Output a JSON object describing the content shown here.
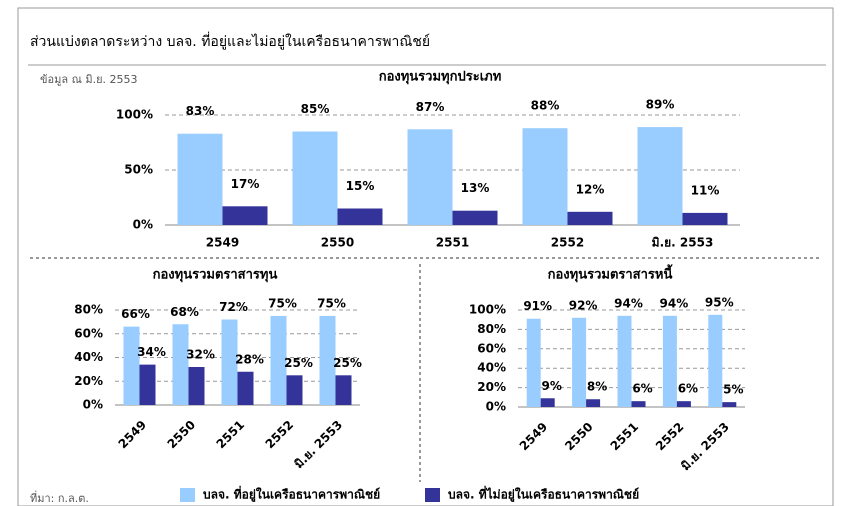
{
  "title": "ส่วนแบ่งตลาดระหว่าง บลจ. ที่อยู่และไม่อยู่ในเครือธนาคารพาณิชย์",
  "note": "ข้อมูล ณ มิ.ย. 2553",
  "source": "ที่มา: ก.ล.ต.",
  "legend": [
    {
      "name": "บลจ. ที่อยู่ในเครือธนาคารพาณิชย์",
      "color": "#99ccff"
    },
    {
      "name": "บลจ. ที่ไม่อยู่ในเครือธนาคารพาณิชย์",
      "color": "#333399"
    }
  ],
  "chart_data": [
    {
      "type": "bar",
      "title": "กองทุนรวมทุกประเภท",
      "categories": [
        "2549",
        "2550",
        "2551",
        "2552",
        "มิ.ย. 2553"
      ],
      "series": [
        {
          "color": "#99ccff",
          "values": [
            83,
            85,
            87,
            88,
            89
          ],
          "value_labels": [
            "83%",
            "85%",
            "87%",
            "88%",
            "89%"
          ]
        },
        {
          "color": "#333399",
          "values": [
            17,
            15,
            13,
            12,
            11
          ],
          "value_labels": [
            "17%",
            "15%",
            "13%",
            "12%",
            "11%"
          ]
        }
      ],
      "ylim": [
        0,
        100
      ],
      "yticks": [
        {
          "value": 0,
          "label": "0%"
        },
        {
          "value": 50,
          "label": "50%"
        },
        {
          "value": 100,
          "label": "100%"
        }
      ],
      "grid": true
    },
    {
      "type": "bar",
      "title": "กองทุนรวมตราสารทุน",
      "categories": [
        "2549",
        "2550",
        "2551",
        "2552",
        "มิ.ย. 2553"
      ],
      "series": [
        {
          "color": "#99ccff",
          "values": [
            66,
            68,
            72,
            75,
            75
          ],
          "value_labels": [
            "66%",
            "68%",
            "72%",
            "75%",
            "75%"
          ]
        },
        {
          "color": "#333399",
          "values": [
            34,
            32,
            28,
            25,
            25
          ],
          "value_labels": [
            "34%",
            "32%",
            "28%",
            "25%",
            "25%"
          ]
        }
      ],
      "ylim": [
        0,
        80
      ],
      "yticks": [
        {
          "value": 0,
          "label": "0%"
        },
        {
          "value": 20,
          "label": "20%"
        },
        {
          "value": 40,
          "label": "40%"
        },
        {
          "value": 60,
          "label": "60%"
        },
        {
          "value": 80,
          "label": "80%"
        }
      ],
      "grid": true
    },
    {
      "type": "bar",
      "title": "กองทุนรวมตราสารหนี้",
      "categories": [
        "2549",
        "2550",
        "2551",
        "2552",
        "มิ.ย. 2553"
      ],
      "series": [
        {
          "color": "#99ccff",
          "values": [
            91,
            92,
            94,
            94,
            95
          ],
          "value_labels": [
            "91%",
            "92%",
            "94%",
            "94%",
            "95%"
          ]
        },
        {
          "color": "#333399",
          "values": [
            9,
            8,
            6,
            6,
            5
          ],
          "value_labels": [
            "9%",
            "8%",
            "6%",
            "6%",
            "5%"
          ]
        }
      ],
      "ylim": [
        0,
        100
      ],
      "yticks": [
        {
          "value": 0,
          "label": "0%"
        },
        {
          "value": 20,
          "label": "20%"
        },
        {
          "value": 40,
          "label": "40%"
        },
        {
          "value": 60,
          "label": "60%"
        },
        {
          "value": 80,
          "label": "80%"
        },
        {
          "value": 100,
          "label": "100%"
        }
      ],
      "grid": true
    }
  ]
}
